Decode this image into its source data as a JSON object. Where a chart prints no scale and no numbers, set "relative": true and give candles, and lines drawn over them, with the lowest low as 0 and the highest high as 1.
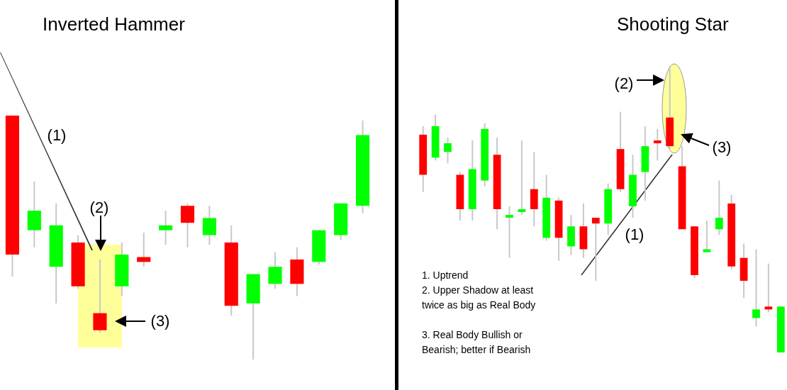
{
  "chart_data": [
    {
      "type": "candlestick",
      "title": "Inverted Hammer",
      "relative": true,
      "categories": [
        null,
        null,
        null,
        null,
        null,
        null,
        null,
        null,
        null,
        null,
        null,
        null,
        null,
        null,
        null,
        null,
        null
      ],
      "ohlc": [
        [
          1.0,
          1.0,
          0.34,
          0.43
        ],
        [
          0.53,
          0.73,
          0.46,
          0.61
        ],
        [
          0.38,
          0.64,
          0.23,
          0.55
        ],
        [
          0.48,
          0.51,
          0.29,
          0.3
        ],
        [
          0.19,
          0.41,
          0.11,
          0.12
        ],
        [
          0.3,
          0.48,
          0.26,
          0.43
        ],
        [
          0.42,
          0.52,
          0.38,
          0.4
        ],
        [
          0.53,
          0.61,
          0.47,
          0.55
        ],
        [
          0.63,
          0.64,
          0.46,
          0.56
        ],
        [
          0.51,
          0.63,
          0.47,
          0.58
        ],
        [
          0.48,
          0.55,
          0.18,
          0.22
        ],
        [
          0.23,
          0.35,
          0.0,
          0.35
        ],
        [
          0.31,
          0.44,
          0.29,
          0.38
        ],
        [
          0.41,
          0.46,
          0.26,
          0.31
        ],
        [
          0.4,
          0.53,
          0.39,
          0.53
        ],
        [
          0.51,
          0.64,
          0.49,
          0.64
        ],
        [
          0.63,
          0.98,
          0.6,
          0.92
        ]
      ],
      "colors": [
        "#ff0000",
        "#00ff00",
        "#00ff00",
        "#ff0000",
        "#ff0000",
        "#00ff00",
        "#ff0000",
        "#00ff00",
        "#ff0000",
        "#00ff00",
        "#ff0000",
        "#00ff00",
        "#00ff00",
        "#ff0000",
        "#00ff00",
        "#00ff00",
        "#00ff00"
      ],
      "annotations": [
        "(1)",
        "(2)",
        "(3)"
      ]
    },
    {
      "type": "candlestick",
      "title": "Shooting Star",
      "relative": true,
      "categories": [
        null,
        null,
        null,
        null,
        null,
        null,
        null,
        null,
        null,
        null,
        null,
        null,
        null,
        null,
        null,
        null,
        null,
        null,
        null,
        null,
        null,
        null,
        null,
        null,
        null,
        null,
        null,
        null,
        null,
        null
      ],
      "ohlc": [
        [
          0.76,
          0.79,
          0.56,
          0.62
        ],
        [
          0.68,
          0.83,
          0.67,
          0.79
        ],
        [
          0.7,
          0.75,
          0.66,
          0.73
        ],
        [
          0.62,
          0.63,
          0.46,
          0.5
        ],
        [
          0.5,
          0.74,
          0.46,
          0.64
        ],
        [
          0.6,
          0.8,
          0.58,
          0.78
        ],
        [
          0.69,
          0.75,
          0.43,
          0.5
        ],
        [
          0.47,
          0.51,
          0.33,
          0.48
        ],
        [
          0.49,
          0.74,
          0.48,
          0.5
        ],
        [
          0.57,
          0.7,
          0.44,
          0.5
        ],
        [
          0.4,
          0.62,
          0.39,
          0.54
        ],
        [
          0.53,
          0.54,
          0.32,
          0.4
        ],
        [
          0.37,
          0.48,
          0.34,
          0.44
        ],
        [
          0.44,
          0.52,
          0.33,
          0.36
        ],
        [
          0.47,
          0.47,
          0.25,
          0.45
        ],
        [
          0.45,
          0.59,
          0.41,
          0.57
        ],
        [
          0.71,
          0.84,
          0.56,
          0.57
        ],
        [
          0.51,
          0.69,
          0.47,
          0.62
        ],
        [
          0.63,
          0.79,
          0.53,
          0.72
        ],
        [
          0.74,
          0.78,
          0.67,
          0.73
        ],
        [
          0.82,
          1.0,
          0.71,
          0.72
        ],
        [
          0.65,
          0.72,
          0.43,
          0.43
        ],
        [
          0.44,
          0.44,
          0.26,
          0.27
        ],
        [
          0.35,
          0.46,
          0.35,
          0.36
        ],
        [
          0.43,
          0.6,
          0.41,
          0.47
        ],
        [
          0.52,
          0.55,
          0.29,
          0.3
        ],
        [
          0.33,
          0.38,
          0.19,
          0.25
        ],
        [
          0.12,
          0.36,
          0.09,
          0.15
        ],
        [
          0.16,
          0.31,
          0.14,
          0.15
        ],
        [
          0.0,
          0.16,
          0.0,
          0.16
        ]
      ],
      "colors": [
        "#ff0000",
        "#00ff00",
        "#00ff00",
        "#ff0000",
        "#00ff00",
        "#00ff00",
        "#ff0000",
        "#00ff00",
        "#00ff00",
        "#ff0000",
        "#00ff00",
        "#ff0000",
        "#00ff00",
        "#ff0000",
        "#ff0000",
        "#00ff00",
        "#ff0000",
        "#00ff00",
        "#00ff00",
        "#ff0000",
        "#ff0000",
        "#ff0000",
        "#ff0000",
        "#00ff00",
        "#00ff00",
        "#ff0000",
        "#ff0000",
        "#00ff00",
        "#ff0000",
        "#00ff00"
      ],
      "annotations": [
        "(1)",
        "(2)",
        "(3)",
        "1. Uptrend",
        "2. Upper Shadow at least twice as big as Real Body",
        "3. Real Body Bullish or Bearish; better if Bearish"
      ]
    }
  ]
}
